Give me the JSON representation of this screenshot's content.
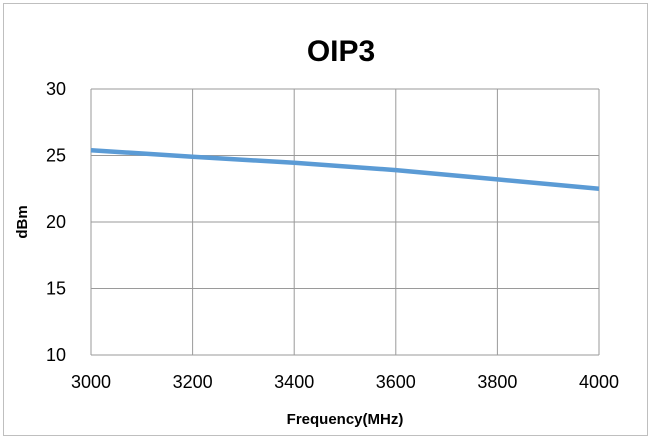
{
  "chart_data": {
    "type": "line",
    "title": "OIP3",
    "xlabel": "Frequency(MHz)",
    "ylabel": "dBm",
    "xlim": [
      3000,
      4000
    ],
    "ylim": [
      10,
      30
    ],
    "x_ticks": [
      3000,
      3200,
      3400,
      3600,
      3800,
      4000
    ],
    "y_ticks": [
      10,
      15,
      20,
      25,
      30
    ],
    "grid": true,
    "legend": "none",
    "series": [
      {
        "color": "#5b9bd5",
        "x": [
          3000,
          3200,
          3400,
          3600,
          3800,
          4000
        ],
        "y": [
          25.4,
          24.9,
          24.45,
          23.9,
          23.2,
          22.5
        ]
      }
    ]
  }
}
